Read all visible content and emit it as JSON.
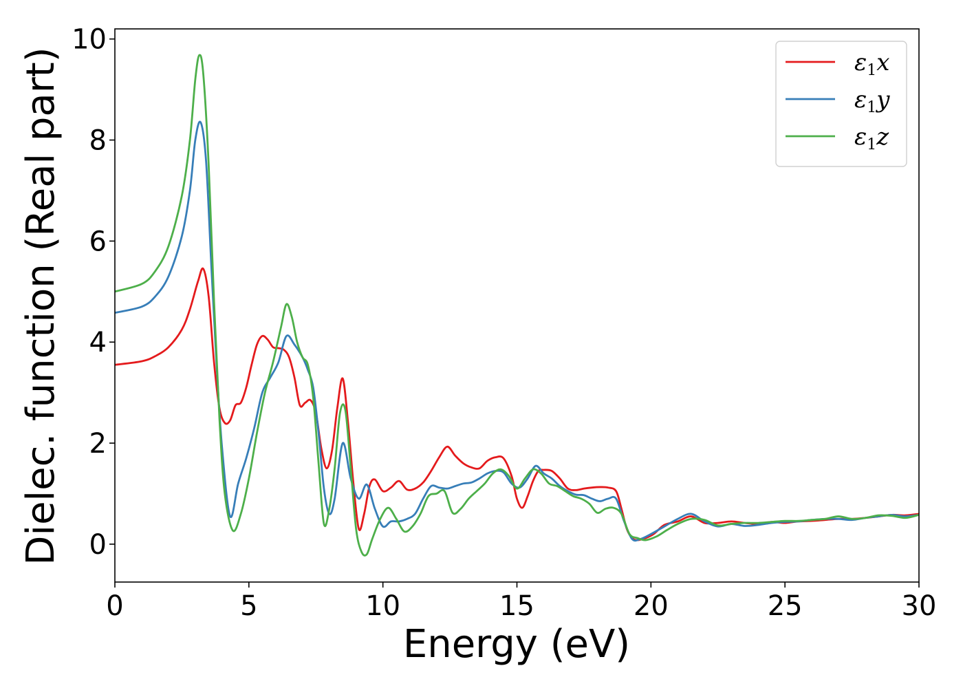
{
  "chart_data": {
    "type": "line",
    "title": "",
    "xlabel": "Energy (eV)",
    "ylabel": "Dielec. function (Real part)",
    "xlim": [
      0,
      30
    ],
    "ylim": [
      -0.75,
      10.2
    ],
    "xticks": [
      0,
      5,
      10,
      15,
      20,
      25,
      30
    ],
    "yticks": [
      0,
      2,
      4,
      6,
      8,
      10
    ],
    "grid": false,
    "legend_position": "top-right",
    "series": [
      {
        "name": "ε₁x",
        "legend_base": "ε",
        "legend_sub": "1",
        "legend_suffix": "x",
        "color": "#e41a1c",
        "x": [
          0,
          1,
          1.5,
          2,
          2.5,
          2.8,
          3.1,
          3.3,
          3.5,
          3.7,
          3.9,
          4.1,
          4.3,
          4.5,
          4.7,
          4.9,
          5.1,
          5.3,
          5.5,
          5.7,
          5.9,
          6.1,
          6.3,
          6.5,
          6.7,
          6.9,
          7.1,
          7.3,
          7.5,
          7.7,
          7.9,
          8.1,
          8.3,
          8.5,
          8.7,
          8.9,
          9.1,
          9.3,
          9.5,
          9.7,
          10.0,
          10.3,
          10.6,
          10.9,
          11.2,
          11.5,
          11.8,
          12.1,
          12.4,
          12.7,
          13.0,
          13.3,
          13.6,
          13.9,
          14.2,
          14.5,
          14.8,
          15.0,
          15.2,
          15.4,
          15.6,
          15.8,
          16.0,
          16.3,
          16.6,
          16.9,
          17.2,
          17.5,
          17.8,
          18.1,
          18.4,
          18.7,
          18.9,
          19.1,
          19.3,
          19.5,
          19.8,
          20.1,
          20.5,
          21.0,
          21.5,
          22.0,
          22.5,
          23.0,
          23.5,
          24.0,
          24.5,
          25.0,
          25.5,
          26.0,
          26.5,
          27.0,
          27.5,
          28.0,
          28.5,
          29.0,
          29.5,
          30.0
        ],
        "y": [
          3.55,
          3.62,
          3.72,
          3.9,
          4.25,
          4.65,
          5.2,
          5.45,
          4.9,
          3.6,
          2.7,
          2.4,
          2.45,
          2.75,
          2.8,
          3.1,
          3.55,
          3.95,
          4.12,
          4.05,
          3.9,
          3.88,
          3.85,
          3.7,
          3.3,
          2.75,
          2.8,
          2.85,
          2.6,
          1.9,
          1.5,
          1.85,
          2.7,
          3.28,
          2.4,
          1.2,
          0.3,
          0.6,
          1.15,
          1.28,
          1.05,
          1.12,
          1.25,
          1.08,
          1.1,
          1.22,
          1.45,
          1.72,
          1.93,
          1.75,
          1.6,
          1.52,
          1.5,
          1.65,
          1.72,
          1.7,
          1.35,
          0.9,
          0.72,
          0.95,
          1.25,
          1.45,
          1.47,
          1.45,
          1.3,
          1.1,
          1.07,
          1.1,
          1.12,
          1.13,
          1.12,
          1.05,
          0.7,
          0.3,
          0.12,
          0.08,
          0.12,
          0.2,
          0.38,
          0.45,
          0.55,
          0.42,
          0.42,
          0.45,
          0.42,
          0.4,
          0.44,
          0.42,
          0.45,
          0.46,
          0.48,
          0.5,
          0.5,
          0.52,
          0.55,
          0.58,
          0.57,
          0.6
        ]
      },
      {
        "name": "ε₁y",
        "legend_base": "ε",
        "legend_sub": "1",
        "legend_suffix": "y",
        "color": "#377eb8",
        "x": [
          0,
          1,
          1.5,
          2,
          2.5,
          2.8,
          3.0,
          3.2,
          3.4,
          3.6,
          3.8,
          4.0,
          4.3,
          4.6,
          4.9,
          5.2,
          5.5,
          5.8,
          6.1,
          6.4,
          6.7,
          7.0,
          7.2,
          7.4,
          7.6,
          7.8,
          8.0,
          8.2,
          8.5,
          8.8,
          9.1,
          9.4,
          9.7,
          10.0,
          10.3,
          10.6,
          10.9,
          11.2,
          11.5,
          11.8,
          12.1,
          12.4,
          12.7,
          13.0,
          13.3,
          13.6,
          13.9,
          14.2,
          14.5,
          14.8,
          15.1,
          15.4,
          15.7,
          16.0,
          16.3,
          16.6,
          16.9,
          17.2,
          17.5,
          17.8,
          18.1,
          18.4,
          18.7,
          19.0,
          19.3,
          19.6,
          20.0,
          20.5,
          21.0,
          21.5,
          22.0,
          22.5,
          23.0,
          23.5,
          24.0,
          24.5,
          25.0,
          25.5,
          26.0,
          26.5,
          27.0,
          27.5,
          28.0,
          28.5,
          29.0,
          29.5,
          30.0
        ],
        "y": [
          4.58,
          4.7,
          4.9,
          5.3,
          6.1,
          7.0,
          8.0,
          8.35,
          7.6,
          5.5,
          3.5,
          1.9,
          0.55,
          1.2,
          1.7,
          2.3,
          3.0,
          3.3,
          3.6,
          4.12,
          3.95,
          3.7,
          3.45,
          3.1,
          2.2,
          1.1,
          0.6,
          0.9,
          2.0,
          1.3,
          0.9,
          1.18,
          0.7,
          0.35,
          0.45,
          0.45,
          0.5,
          0.6,
          0.9,
          1.15,
          1.12,
          1.1,
          1.15,
          1.2,
          1.22,
          1.3,
          1.4,
          1.45,
          1.42,
          1.2,
          1.12,
          1.3,
          1.55,
          1.4,
          1.3,
          1.15,
          1.05,
          0.98,
          0.97,
          0.9,
          0.85,
          0.9,
          0.9,
          0.45,
          0.1,
          0.1,
          0.2,
          0.35,
          0.5,
          0.6,
          0.45,
          0.35,
          0.4,
          0.36,
          0.38,
          0.42,
          0.44,
          0.45,
          0.48,
          0.5,
          0.5,
          0.48,
          0.52,
          0.55,
          0.58,
          0.55,
          0.58
        ]
      },
      {
        "name": "ε₁z",
        "legend_base": "ε",
        "legend_sub": "1",
        "legend_suffix": "z",
        "color": "#4daf4a",
        "x": [
          0,
          1,
          1.5,
          2,
          2.5,
          2.8,
          3.0,
          3.15,
          3.3,
          3.5,
          3.7,
          3.9,
          4.1,
          4.4,
          4.7,
          5.0,
          5.3,
          5.6,
          5.9,
          6.2,
          6.4,
          6.6,
          6.8,
          7.0,
          7.2,
          7.4,
          7.6,
          7.8,
          8.0,
          8.2,
          8.4,
          8.6,
          8.8,
          9.0,
          9.2,
          9.4,
          9.6,
          9.9,
          10.2,
          10.5,
          10.8,
          11.1,
          11.4,
          11.7,
          12.0,
          12.3,
          12.6,
          12.9,
          13.2,
          13.5,
          13.8,
          14.1,
          14.4,
          14.7,
          15.0,
          15.3,
          15.6,
          15.9,
          16.2,
          16.5,
          16.8,
          17.1,
          17.4,
          17.7,
          18.0,
          18.3,
          18.6,
          18.9,
          19.2,
          19.5,
          19.8,
          20.2,
          20.6,
          21.0,
          21.5,
          22.0,
          22.5,
          23.0,
          23.5,
          24.0,
          24.5,
          25.0,
          25.5,
          26.0,
          26.5,
          27.0,
          27.5,
          28.0,
          28.5,
          29.0,
          29.5,
          30.0
        ],
        "y": [
          5.0,
          5.15,
          5.4,
          5.9,
          6.9,
          8.0,
          9.2,
          9.68,
          9.3,
          7.5,
          4.8,
          2.5,
          1.0,
          0.27,
          0.6,
          1.3,
          2.2,
          3.0,
          3.6,
          4.3,
          4.75,
          4.5,
          4.0,
          3.7,
          3.55,
          2.9,
          1.6,
          0.4,
          0.7,
          1.5,
          2.6,
          2.65,
          1.5,
          0.3,
          -0.15,
          -0.2,
          0.1,
          0.5,
          0.72,
          0.5,
          0.25,
          0.35,
          0.6,
          0.95,
          1.0,
          1.05,
          0.62,
          0.7,
          0.9,
          1.05,
          1.2,
          1.4,
          1.48,
          1.35,
          1.1,
          1.3,
          1.48,
          1.4,
          1.2,
          1.15,
          1.05,
          0.95,
          0.9,
          0.8,
          0.62,
          0.7,
          0.72,
          0.6,
          0.2,
          0.12,
          0.08,
          0.15,
          0.28,
          0.4,
          0.5,
          0.48,
          0.37,
          0.4,
          0.42,
          0.42,
          0.44,
          0.46,
          0.46,
          0.48,
          0.5,
          0.55,
          0.5,
          0.52,
          0.57,
          0.56,
          0.52,
          0.58
        ]
      }
    ]
  }
}
